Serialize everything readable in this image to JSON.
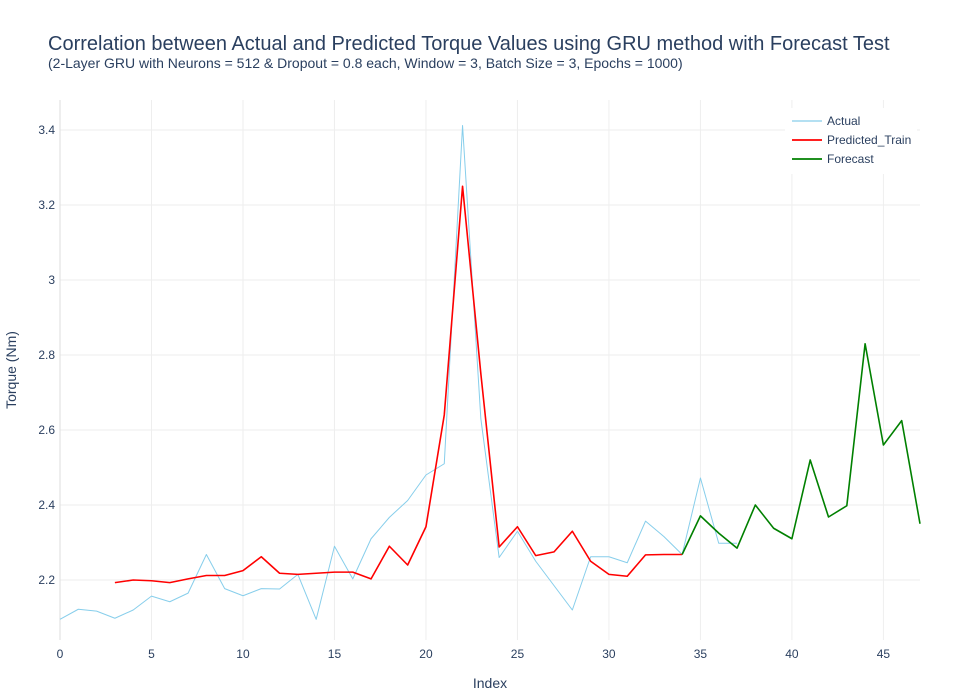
{
  "chart_data": {
    "type": "line",
    "title": "Correlation between Actual and Predicted Torque Values using GRU method with Forecast Test",
    "subtitle": "(2-Layer GRU with Neurons = 512 & Dropout = 0.8 each, Window = 3, Batch Size = 3, Epochs = 1000)",
    "xlabel": "Index",
    "ylabel": "Torque (Nm)",
    "xlim": [
      0,
      47
    ],
    "ylim": [
      2.04,
      3.48
    ],
    "x_ticks": [
      0,
      5,
      10,
      15,
      20,
      25,
      30,
      35,
      40,
      45
    ],
    "x_tick_labels": [
      "0",
      "5",
      "10",
      "15",
      "20",
      "25",
      "30",
      "35",
      "40",
      "45"
    ],
    "y_ticks": [
      2.2,
      2.4,
      2.6,
      2.8,
      3.0,
      3.2,
      3.4
    ],
    "y_tick_labels": [
      "2.2",
      "2.4",
      "2.6",
      "2.8",
      "3",
      "3.2",
      "3.4"
    ],
    "grid": true,
    "legend_position": "top-right",
    "series": [
      {
        "name": "Actual",
        "color": "#87ceeb",
        "x": [
          0,
          1,
          2,
          3,
          4,
          5,
          6,
          7,
          8,
          9,
          10,
          11,
          12,
          13,
          14,
          15,
          16,
          17,
          18,
          19,
          20,
          21,
          22,
          23,
          24,
          25,
          26,
          27,
          28,
          29,
          30,
          31,
          32,
          33,
          34,
          35,
          36,
          37
        ],
        "values": [
          2.095,
          2.122,
          2.117,
          2.098,
          2.12,
          2.157,
          2.142,
          2.165,
          2.268,
          2.177,
          2.158,
          2.177,
          2.176,
          2.215,
          2.095,
          2.29,
          2.203,
          2.31,
          2.367,
          2.412,
          2.48,
          2.51,
          3.412,
          2.63,
          2.26,
          2.33,
          2.25,
          2.185,
          2.12,
          2.262,
          2.262,
          2.246,
          2.357,
          2.316,
          2.268,
          2.472,
          2.298,
          2.298
        ]
      },
      {
        "name": "Predicted_Train",
        "color": "#ff0000",
        "x": [
          3,
          4,
          5,
          6,
          7,
          8,
          9,
          10,
          11,
          12,
          13,
          14,
          15,
          16,
          17,
          18,
          19,
          20,
          21,
          22,
          23,
          24,
          25,
          26,
          27,
          28,
          29,
          30,
          31,
          32,
          33,
          34
        ],
        "values": [
          2.193,
          2.2,
          2.198,
          2.193,
          2.203,
          2.212,
          2.212,
          2.225,
          2.262,
          2.218,
          2.215,
          2.218,
          2.221,
          2.221,
          2.203,
          2.29,
          2.24,
          2.342,
          2.64,
          3.25,
          2.75,
          2.288,
          2.342,
          2.265,
          2.275,
          2.33,
          2.25,
          2.215,
          2.21,
          2.267,
          2.268,
          2.268
        ]
      },
      {
        "name": "Forecast",
        "color": "#008000",
        "x": [
          34,
          35,
          36,
          37,
          38,
          39,
          40,
          41,
          42,
          43,
          44,
          45,
          46,
          47
        ],
        "values": [
          2.268,
          2.371,
          2.325,
          2.285,
          2.4,
          2.338,
          2.31,
          2.52,
          2.368,
          2.398,
          2.83,
          2.56,
          2.625,
          2.35
        ]
      }
    ]
  }
}
